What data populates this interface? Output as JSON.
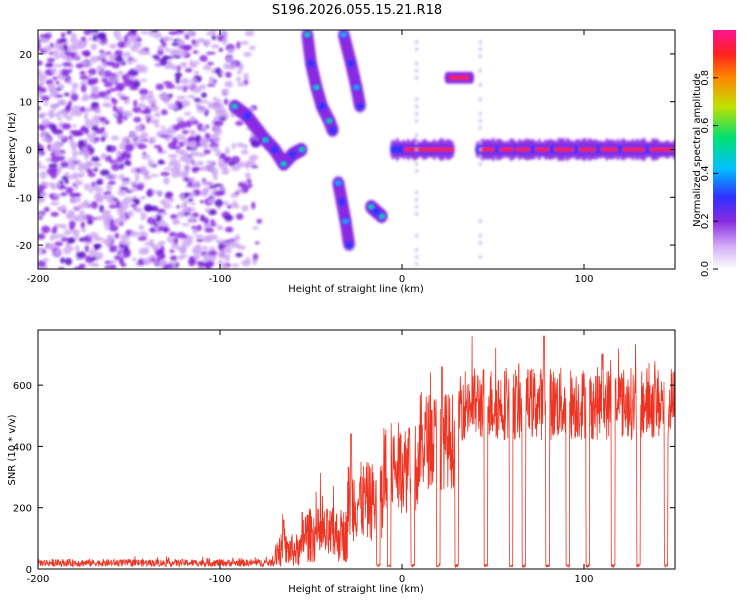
{
  "title": "S196.2026.055.15.21.R18",
  "colors": {
    "snr_line": "#ee3322",
    "spectrogram_low": "#7a22dd",
    "colormap": [
      "#ffffff",
      "#cfa8f5",
      "#8a2be2",
      "#3030ff",
      "#00c0ff",
      "#00e070",
      "#c0e000",
      "#ff8800",
      "#ff2020",
      "#ff1493"
    ]
  },
  "chart_data": [
    {
      "type": "heatmap",
      "name": "spectrogram",
      "xlabel": "Height of straight line (km)",
      "ylabel": "Frequency (Hz)",
      "xlim": [
        -200,
        150
      ],
      "ylim": [
        -25,
        25
      ],
      "xticks": [
        -200,
        -100,
        0,
        100
      ],
      "yticks": [
        -20,
        -10,
        0,
        10,
        20
      ],
      "colorbar": {
        "label": "Normalized spectral amplitude",
        "range": [
          0,
          1
        ],
        "ticks": [
          "0.0",
          "0.2",
          "0.4",
          "0.6",
          "0.8"
        ]
      },
      "features": [
        {
          "name": "noise-region",
          "x_range": [
            -200,
            -78
          ],
          "freq_range": [
            -25,
            25
          ],
          "amplitude": 0.15
        },
        {
          "name": "band-a",
          "points": [
            [
              -92,
              9
            ],
            [
              -85,
              7
            ],
            [
              -75,
              2
            ],
            [
              -70,
              0
            ],
            [
              -65,
              -3
            ],
            [
              -60,
              -1
            ],
            [
              -55,
              0
            ]
          ],
          "amplitude": 0.55
        },
        {
          "name": "band-b",
          "points": [
            [
              -52,
              24
            ],
            [
              -50,
              18
            ],
            [
              -47,
              13
            ],
            [
              -44,
              9
            ],
            [
              -40,
              6
            ],
            [
              -38,
              4
            ]
          ],
          "amplitude": 0.5
        },
        {
          "name": "band-c",
          "points": [
            [
              -32,
              24
            ],
            [
              -28,
              18
            ],
            [
              -25,
              13
            ],
            [
              -23,
              9
            ]
          ],
          "amplitude": 0.45
        },
        {
          "name": "band-d",
          "points": [
            [
              -35,
              -7
            ],
            [
              -33,
              -11
            ],
            [
              -31,
              -15
            ],
            [
              -29,
              -20
            ]
          ],
          "amplitude": 0.45
        },
        {
          "name": "band-e",
          "points": [
            [
              -17,
              -12
            ],
            [
              -14,
              -13
            ],
            [
              -11,
              -14
            ]
          ],
          "amplitude": 0.5
        },
        {
          "name": "carrier",
          "freq": 0,
          "x_range": [
            -5,
            150
          ],
          "amplitude": 0.9
        },
        {
          "name": "tone-15hz",
          "freq": 15,
          "x_range": [
            25,
            38
          ],
          "amplitude": 0.85
        }
      ]
    },
    {
      "type": "line",
      "name": "snr",
      "xlabel": "Height of straight line (km)",
      "ylabel": "SNR (10 * v/v)",
      "xlim": [
        -200,
        150
      ],
      "ylim": [
        0,
        780
      ],
      "xticks": [
        -200,
        -100,
        0,
        100
      ],
      "yticks": [
        0,
        200,
        400,
        600
      ],
      "segments": [
        {
          "x_range": [
            -200,
            -70
          ],
          "level": 20,
          "noise": 12
        },
        {
          "x_range": [
            -70,
            -55
          ],
          "level": 60,
          "noise": 55
        },
        {
          "x_range": [
            -55,
            -30
          ],
          "level": 110,
          "noise": 90
        },
        {
          "x_range": [
            -30,
            -10
          ],
          "level": 220,
          "noise": 130
        },
        {
          "x_range": [
            -10,
            10
          ],
          "level": 330,
          "noise": 150
        },
        {
          "x_range": [
            10,
            30
          ],
          "level": 420,
          "noise": 160
        },
        {
          "x_range": [
            30,
            150
          ],
          "level": 540,
          "noise": 120
        }
      ],
      "dropouts": [
        -13,
        -7,
        6,
        20,
        30,
        46,
        60,
        67,
        80,
        91,
        102,
        116,
        130,
        145
      ],
      "peaks": [
        [
          -65,
          160
        ],
        [
          -28,
          440
        ],
        [
          4,
          460
        ],
        [
          22,
          660
        ],
        [
          30,
          720
        ],
        [
          78,
          760
        ],
        [
          110,
          700
        ]
      ]
    }
  ]
}
